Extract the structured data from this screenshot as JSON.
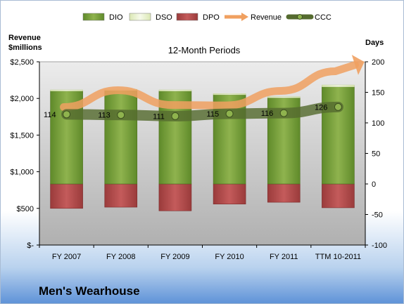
{
  "chart_data": {
    "type": "bar",
    "title": "12-Month Periods",
    "company": "Men's Wearhouse",
    "left_axis_label": [
      "Revenue",
      "$millions"
    ],
    "right_axis_label": "Days",
    "categories": [
      "FY 2007",
      "FY 2008",
      "FY 2009",
      "FY 2010",
      "FY 2011",
      "TTM 10-2011"
    ],
    "left_ylim": [
      0,
      2500
    ],
    "left_ticks": [
      0,
      500,
      1000,
      1500,
      2000,
      2500
    ],
    "left_tick_labels": [
      "$-",
      "$500",
      "$1,000",
      "$1,500",
      "$2,000",
      "$2,500"
    ],
    "right_ylim": [
      -100,
      200
    ],
    "right_ticks": [
      -100,
      -50,
      0,
      50,
      100,
      150,
      200
    ],
    "right_tick_labels": [
      "-100",
      "-50",
      "0",
      "50",
      "100",
      "150",
      "200"
    ],
    "series": [
      {
        "name": "DIO",
        "axis": "right",
        "kind": "stacked-bar",
        "color": "#7a9e3d",
        "values": [
          152,
          153,
          152,
          146,
          141,
          159
        ]
      },
      {
        "name": "DSO",
        "axis": "right",
        "kind": "stacked-bar",
        "color": "#eaf2cf",
        "values": [
          2,
          2,
          2,
          2,
          2,
          3
        ]
      },
      {
        "name": "DPO",
        "axis": "right",
        "kind": "negative-bar",
        "color": "#b34c4c",
        "values": [
          -40,
          -38,
          -44,
          -33,
          -30,
          -39
        ]
      },
      {
        "name": "Revenue",
        "axis": "left",
        "kind": "arrow-line",
        "color": "#f0a060",
        "values": [
          1882,
          2112,
          1910,
          1905,
          2103,
          2371
        ]
      },
      {
        "name": "CCC",
        "axis": "right",
        "kind": "line",
        "color": "#556b2f",
        "values": [
          114,
          113,
          111,
          115,
          116,
          126
        ],
        "labels": [
          "114",
          "113",
          "111",
          "115",
          "116",
          "126"
        ]
      }
    ],
    "legend_position": "top",
    "background_colors": {
      "plot": "#b8b8b8",
      "plot_light": "#ececec",
      "page_top": "#ffffff",
      "page_bottom": "#5f93d8"
    }
  }
}
